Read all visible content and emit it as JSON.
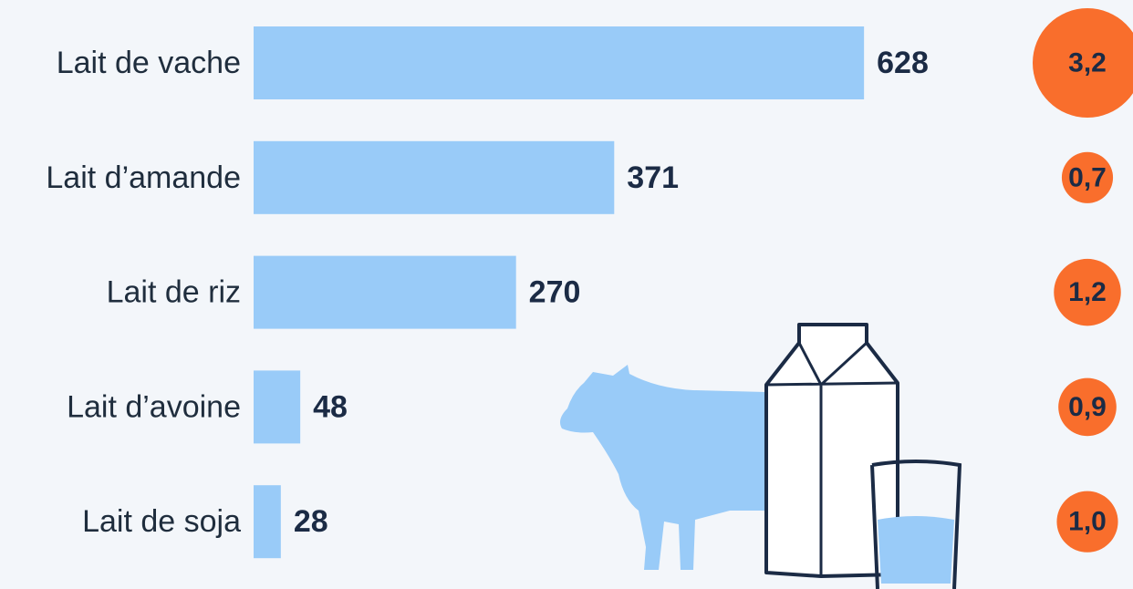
{
  "chart_data": {
    "type": "bar",
    "categories": [
      "Lait de vache",
      "Lait d’amande",
      "Lait de riz",
      "Lait d’avoine",
      "Lait de soja"
    ],
    "series": [
      {
        "color": "#99cbf8",
        "values": [
          628,
          371,
          270,
          48,
          28
        ]
      },
      {
        "type": "bubble",
        "color": "#f96e2c",
        "values": [
          3.2,
          0.7,
          1.2,
          0.9,
          1.0
        ],
        "value_labels": [
          "3,2",
          "0,7",
          "1,2",
          "0,9",
          "1,0"
        ]
      }
    ]
  }
}
